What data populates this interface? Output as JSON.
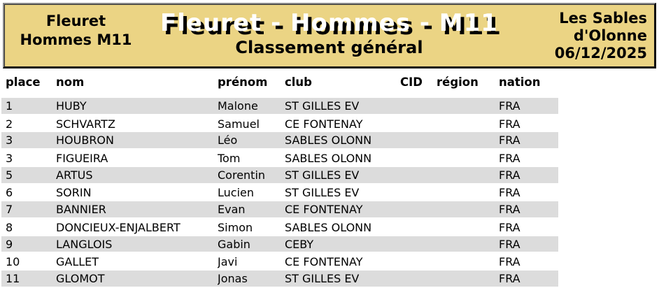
{
  "banner": {
    "left_line1": "Fleuret",
    "left_line2": "Hommes M11",
    "main_title": "Fleuret - Hommes - M11",
    "subtitle": "Classement général",
    "location_line1": "Les Sables",
    "location_line2": "d'Olonne",
    "date": "06/12/2025"
  },
  "colors": {
    "banner_bg": "#EBD484",
    "row_alt_bg": "#DCDCDC",
    "title_text": "#FFFFFF",
    "title_shadow": "#000000"
  },
  "table": {
    "columns": {
      "place": "place",
      "nom": "nom",
      "prenom": "prénom",
      "club": "club",
      "cid": "CID",
      "region": "région",
      "nation": "nation"
    },
    "rows": [
      {
        "place": "1",
        "nom": "HUBY",
        "prenom": "Malone",
        "club": "ST GILLES EV",
        "cid": "",
        "region": "",
        "nation": "FRA"
      },
      {
        "place": "2",
        "nom": "SCHVARTZ",
        "prenom": "Samuel",
        "club": "CE FONTENAY",
        "cid": "",
        "region": "",
        "nation": "FRA"
      },
      {
        "place": "3",
        "nom": "HOUBRON",
        "prenom": "Léo",
        "club": "SABLES OLONN",
        "cid": "",
        "region": "",
        "nation": "FRA"
      },
      {
        "place": "3",
        "nom": "FIGUEIRA",
        "prenom": "Tom",
        "club": "SABLES OLONN",
        "cid": "",
        "region": "",
        "nation": "FRA"
      },
      {
        "place": "5",
        "nom": "ARTUS",
        "prenom": "Corentin",
        "club": "ST GILLES EV",
        "cid": "",
        "region": "",
        "nation": "FRA"
      },
      {
        "place": "6",
        "nom": "SORIN",
        "prenom": "Lucien",
        "club": "ST GILLES EV",
        "cid": "",
        "region": "",
        "nation": "FRA"
      },
      {
        "place": "7",
        "nom": "BANNIER",
        "prenom": "Evan",
        "club": "CE FONTENAY",
        "cid": "",
        "region": "",
        "nation": "FRA"
      },
      {
        "place": "8",
        "nom": "DONCIEUX-ENJALBERT",
        "prenom": "Simon",
        "club": "SABLES OLONN",
        "cid": "",
        "region": "",
        "nation": "FRA"
      },
      {
        "place": "9",
        "nom": "LANGLOIS",
        "prenom": "Gabin",
        "club": "CEBY",
        "cid": "",
        "region": "",
        "nation": "FRA"
      },
      {
        "place": "10",
        "nom": "GALLET",
        "prenom": "Javi",
        "club": "CE FONTENAY",
        "cid": "",
        "region": "",
        "nation": "FRA"
      },
      {
        "place": "11",
        "nom": "GLOMOT",
        "prenom": "Jonas",
        "club": "ST GILLES EV",
        "cid": "",
        "region": "",
        "nation": "FRA"
      }
    ]
  }
}
